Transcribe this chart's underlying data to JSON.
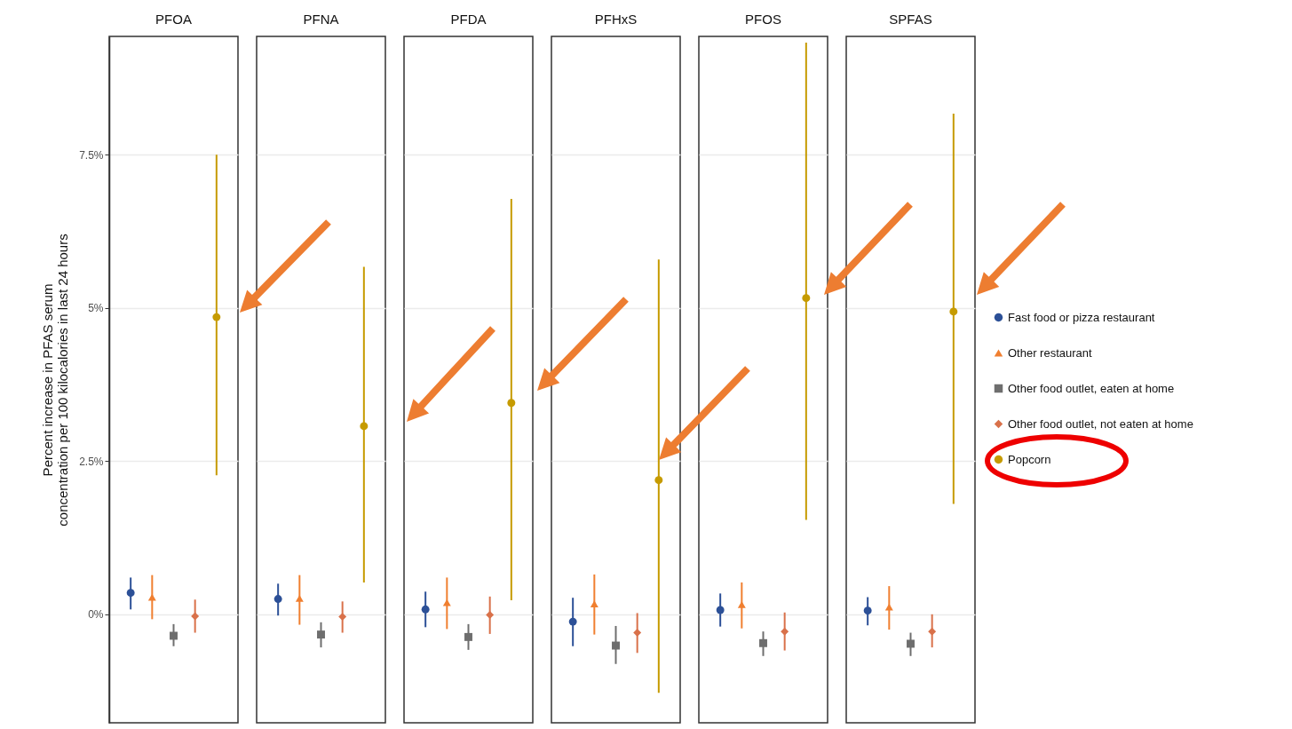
{
  "chart_data": {
    "type": "scatter",
    "ylabel": "Percent increase in PFAS serum\nconcentration per 100 kilocalories in last 24 hours",
    "categories": [
      "PFOA",
      "PFNA",
      "PFDA",
      "PFHxS",
      "PFOS",
      "SPFAS"
    ],
    "ylim": [
      -1.77,
      9.43
    ],
    "yticks": [
      {
        "value": 0,
        "label": "0%"
      },
      {
        "value": 2.5,
        "label": "2.5%"
      },
      {
        "value": 5,
        "label": "5%"
      },
      {
        "value": 7.5,
        "label": "7.5%"
      }
    ],
    "grid": "y",
    "legend": "right",
    "series": [
      {
        "name": "Fast food or pizza restaurant",
        "color": "#2c5097",
        "marker": "circle",
        "values": [
          0.35,
          0.25,
          0.08,
          -0.12,
          0.07,
          0.06
        ],
        "errors": [
          [
            0.08,
            0.6
          ],
          [
            -0.02,
            0.5
          ],
          [
            -0.21,
            0.37
          ],
          [
            -0.52,
            0.27
          ],
          [
            -0.2,
            0.34
          ],
          [
            -0.18,
            0.28
          ]
        ]
      },
      {
        "name": "Other restaurant",
        "color": "#f07f30",
        "marker": "triangle",
        "values": [
          0.28,
          0.26,
          0.19,
          0.17,
          0.16,
          0.12
        ],
        "errors": [
          [
            -0.08,
            0.64
          ],
          [
            -0.17,
            0.64
          ],
          [
            -0.24,
            0.6
          ],
          [
            -0.33,
            0.65
          ],
          [
            -0.23,
            0.52
          ],
          [
            -0.25,
            0.46
          ]
        ]
      },
      {
        "name": "Other food outlet, eaten at home",
        "color": "#6e6e6e",
        "marker": "square",
        "values": [
          -0.35,
          -0.33,
          -0.37,
          -0.51,
          -0.47,
          -0.48
        ],
        "errors": [
          [
            -0.52,
            -0.16
          ],
          [
            -0.54,
            -0.13
          ],
          [
            -0.58,
            -0.16
          ],
          [
            -0.81,
            -0.19
          ],
          [
            -0.68,
            -0.28
          ],
          [
            -0.68,
            -0.3
          ]
        ]
      },
      {
        "name": "Other food outlet, not eaten at home",
        "color": "#d9714a",
        "marker": "diamond",
        "values": [
          -0.03,
          -0.04,
          -0.01,
          -0.3,
          -0.28,
          -0.28
        ],
        "errors": [
          [
            -0.3,
            0.24
          ],
          [
            -0.3,
            0.21
          ],
          [
            -0.32,
            0.29
          ],
          [
            -0.63,
            0.02
          ],
          [
            -0.59,
            0.03
          ],
          [
            -0.54,
            0.0
          ]
        ]
      },
      {
        "name": "Popcorn",
        "color": "#c69b00",
        "marker": "circle",
        "values": [
          4.85,
          3.07,
          3.45,
          2.19,
          5.16,
          4.94
        ],
        "errors": [
          [
            2.27,
            7.5
          ],
          [
            0.52,
            5.67
          ],
          [
            0.23,
            6.78
          ],
          [
            -1.28,
            5.79
          ],
          [
            1.54,
            9.33
          ],
          [
            1.8,
            8.17
          ]
        ]
      }
    ]
  }
}
